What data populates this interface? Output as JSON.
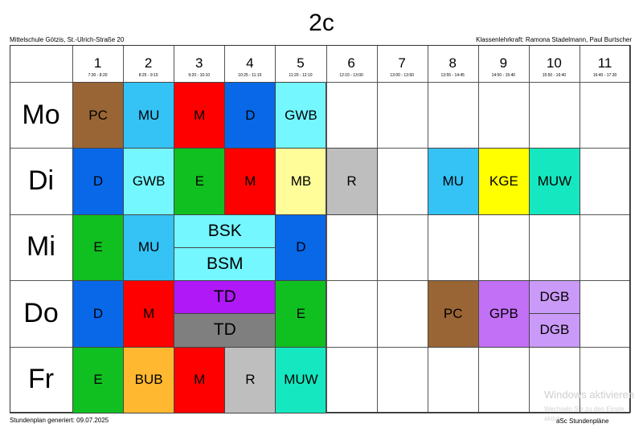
{
  "header": {
    "title": "2c",
    "school": "Mittelschule Götzis, St.-Ulrich-Straße 20",
    "teacher": "Klassenlehrkraft: Ramona Stadelmann, Paul Burtscher"
  },
  "footer": {
    "generated": "Stundenplan generiert: 09.07.2025",
    "brand": "aSc Stundenpläne"
  },
  "watermark": {
    "line1": "Windows aktivieren",
    "line2": "Wechseln Sie zu den Einste",
    "line3": "aktivie"
  },
  "periods": [
    {
      "num": "1",
      "time": "7:30 - 8:20"
    },
    {
      "num": "2",
      "time": "8:25 - 9:15"
    },
    {
      "num": "3",
      "time": "9:20 - 10:10"
    },
    {
      "num": "4",
      "time": "10:25 - 11:15"
    },
    {
      "num": "5",
      "time": "11:20 - 12:10"
    },
    {
      "num": "6",
      "time": "12:10 - 13:00"
    },
    {
      "num": "7",
      "time": "13:00 - 13:50"
    },
    {
      "num": "8",
      "time": "13:55 - 14:45"
    },
    {
      "num": "9",
      "time": "14:50 - 15:40"
    },
    {
      "num": "10",
      "time": "15:50 - 16:40"
    },
    {
      "num": "11",
      "time": "16:40 - 17:30"
    }
  ],
  "days": [
    "Mo",
    "Di",
    "Mi",
    "Do",
    "Fr"
  ],
  "lessons": [
    {
      "day": 0,
      "period": 1,
      "span": 1,
      "part": "full",
      "subject": "PC",
      "color": "#9a6535"
    },
    {
      "day": 0,
      "period": 2,
      "span": 1,
      "part": "full",
      "subject": "MU",
      "color": "#35c2f5"
    },
    {
      "day": 0,
      "period": 3,
      "span": 1,
      "part": "full",
      "subject": "M",
      "color": "#ff0000"
    },
    {
      "day": 0,
      "period": 4,
      "span": 1,
      "part": "full",
      "subject": "D",
      "color": "#0868e8"
    },
    {
      "day": 0,
      "period": 5,
      "span": 1,
      "part": "full",
      "subject": "GWB",
      "color": "#74f7ff"
    },
    {
      "day": 1,
      "period": 1,
      "span": 1,
      "part": "full",
      "subject": "D",
      "color": "#0868e8"
    },
    {
      "day": 1,
      "period": 2,
      "span": 1,
      "part": "full",
      "subject": "GWB",
      "color": "#74f7ff"
    },
    {
      "day": 1,
      "period": 3,
      "span": 1,
      "part": "full",
      "subject": "E",
      "color": "#10c020"
    },
    {
      "day": 1,
      "period": 4,
      "span": 1,
      "part": "full",
      "subject": "M",
      "color": "#ff0000"
    },
    {
      "day": 1,
      "period": 5,
      "span": 1,
      "part": "full",
      "subject": "MB",
      "color": "#fffd9a"
    },
    {
      "day": 1,
      "period": 6,
      "span": 1,
      "part": "full",
      "subject": "R",
      "color": "#bebebe"
    },
    {
      "day": 1,
      "period": 8,
      "span": 1,
      "part": "full",
      "subject": "MU",
      "color": "#35c2f5"
    },
    {
      "day": 1,
      "period": 9,
      "span": 1,
      "part": "full",
      "subject": "KGE",
      "color": "#ffff00"
    },
    {
      "day": 1,
      "period": 10,
      "span": 1,
      "part": "full",
      "subject": "MUW",
      "color": "#15e8c0"
    },
    {
      "day": 2,
      "period": 1,
      "span": 1,
      "part": "full",
      "subject": "E",
      "color": "#10c020"
    },
    {
      "day": 2,
      "period": 2,
      "span": 1,
      "part": "full",
      "subject": "MU",
      "color": "#35c2f5"
    },
    {
      "day": 2,
      "period": 3,
      "span": 2,
      "part": "top",
      "subject": "BSK",
      "color": "#74f7ff"
    },
    {
      "day": 2,
      "period": 3,
      "span": 2,
      "part": "bottom",
      "subject": "BSM",
      "color": "#74f7ff"
    },
    {
      "day": 2,
      "period": 5,
      "span": 1,
      "part": "full",
      "subject": "D",
      "color": "#0868e8"
    },
    {
      "day": 3,
      "period": 1,
      "span": 1,
      "part": "full",
      "subject": "D",
      "color": "#0868e8"
    },
    {
      "day": 3,
      "period": 2,
      "span": 1,
      "part": "full",
      "subject": "M",
      "color": "#ff0000"
    },
    {
      "day": 3,
      "period": 3,
      "span": 2,
      "part": "top",
      "subject": "TD",
      "color": "#b018f8"
    },
    {
      "day": 3,
      "period": 3,
      "span": 2,
      "part": "bottom",
      "subject": "TD",
      "color": "#7f7f7f"
    },
    {
      "day": 3,
      "period": 5,
      "span": 1,
      "part": "full",
      "subject": "E",
      "color": "#10c020"
    },
    {
      "day": 3,
      "period": 8,
      "span": 1,
      "part": "full",
      "subject": "PC",
      "color": "#9a6535"
    },
    {
      "day": 3,
      "period": 9,
      "span": 1,
      "part": "full",
      "subject": "GPB",
      "color": "#c270f5"
    },
    {
      "day": 3,
      "period": 10,
      "span": 1,
      "part": "top",
      "subject": "DGB",
      "color": "#c99af7"
    },
    {
      "day": 3,
      "period": 10,
      "span": 1,
      "part": "bottom",
      "subject": "DGB",
      "color": "#c99af7"
    },
    {
      "day": 4,
      "period": 1,
      "span": 1,
      "part": "full",
      "subject": "E",
      "color": "#10c020"
    },
    {
      "day": 4,
      "period": 2,
      "span": 1,
      "part": "full",
      "subject": "BUB",
      "color": "#ffb830"
    },
    {
      "day": 4,
      "period": 3,
      "span": 1,
      "part": "full",
      "subject": "M",
      "color": "#ff0000"
    },
    {
      "day": 4,
      "period": 4,
      "span": 1,
      "part": "full",
      "subject": "R",
      "color": "#bebebe"
    },
    {
      "day": 4,
      "period": 5,
      "span": 1,
      "part": "full",
      "subject": "MUW",
      "color": "#15e8c0"
    }
  ]
}
